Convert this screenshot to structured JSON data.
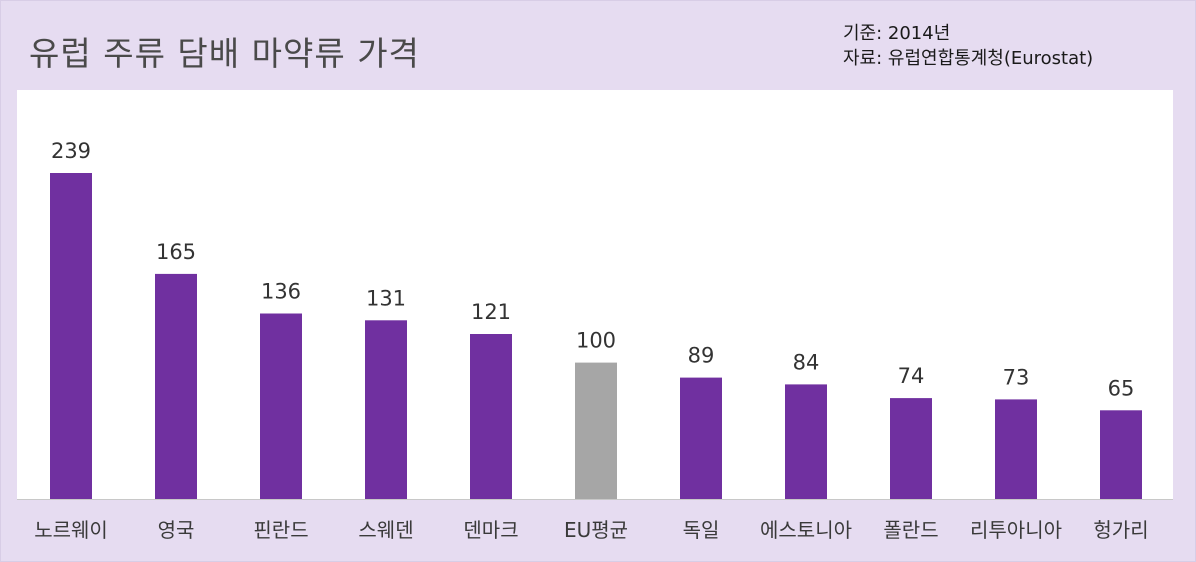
{
  "chart_data": {
    "type": "bar",
    "title": "유럽 주류 담배 마약류 가격",
    "notes": [
      "기준: 2014년",
      "자료: 유럽연합통계청(Eurostat)"
    ],
    "categories": [
      "노르웨이",
      "영국",
      "핀란드",
      "스웨덴",
      "덴마크",
      "EU평균",
      "독일",
      "에스토니아",
      "폴란드",
      "리투아니아",
      "헝가리"
    ],
    "values": [
      239,
      165,
      136,
      131,
      121,
      100,
      89,
      84,
      74,
      73,
      65
    ],
    "highlight_category": "EU평균",
    "ylim": [
      0,
      250
    ],
    "grid": false,
    "legend": "none",
    "colors": {
      "bar": "#7030a0",
      "highlight": "#a6a6a6",
      "panel": "#e6dcf1",
      "plot_background": "#ffffff"
    }
  }
}
